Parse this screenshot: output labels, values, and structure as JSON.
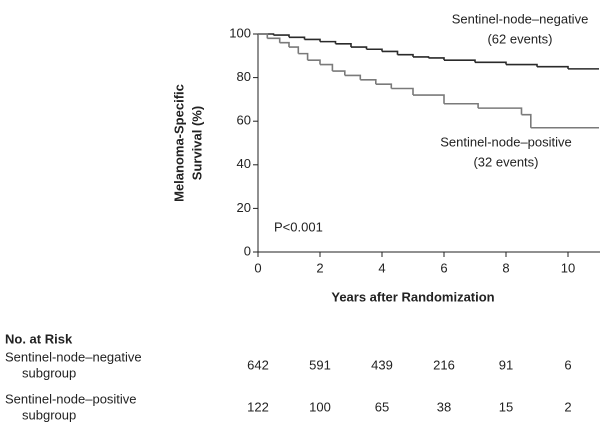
{
  "chart_data": {
    "type": "line",
    "step": true,
    "y_label": [
      "Melanoma-Specific",
      "Survival (%)"
    ],
    "x_label": "Years after Randomization",
    "xlim": [
      0,
      11
    ],
    "ylim": [
      0,
      100
    ],
    "xticks": [
      0,
      2,
      4,
      6,
      8,
      10
    ],
    "yticks": [
      0,
      20,
      40,
      60,
      80,
      100
    ],
    "series": [
      {
        "name": [
          "Sentinel-node–negative",
          "(62 events)"
        ],
        "color": "#2a2a2a",
        "x": [
          0,
          0.5,
          1,
          1.5,
          2,
          2.5,
          3,
          3.5,
          4,
          4.5,
          5,
          5.5,
          6,
          7,
          8,
          9,
          10,
          11
        ],
        "values": [
          100,
          99.5,
          98.5,
          97.5,
          96.5,
          95.5,
          94,
          93,
          92,
          90.5,
          89.5,
          89,
          88,
          87,
          86,
          85,
          84,
          84
        ]
      },
      {
        "name": [
          "Sentinel-node–positive",
          "(32 events)"
        ],
        "color": "#7a7a7a",
        "x": [
          0,
          0.3,
          0.7,
          1,
          1.3,
          1.6,
          2,
          2.4,
          2.8,
          3.3,
          3.8,
          4.3,
          5,
          6,
          7.1,
          8.5,
          8.8,
          11
        ],
        "values": [
          100,
          98,
          96,
          94,
          91,
          88,
          86,
          83,
          81,
          79,
          77,
          75,
          72,
          68,
          66,
          63,
          57,
          57
        ]
      }
    ],
    "annotation": "P<0.001",
    "risk_table": {
      "title": "No. at Risk",
      "rows": [
        {
          "label": [
            "Sentinel-node–negative",
            "subgroup"
          ],
          "values": [
            642,
            591,
            439,
            216,
            91,
            6
          ]
        },
        {
          "label": [
            "Sentinel-node–positive",
            "subgroup"
          ],
          "values": [
            122,
            100,
            65,
            38,
            15,
            2
          ]
        }
      ]
    }
  }
}
